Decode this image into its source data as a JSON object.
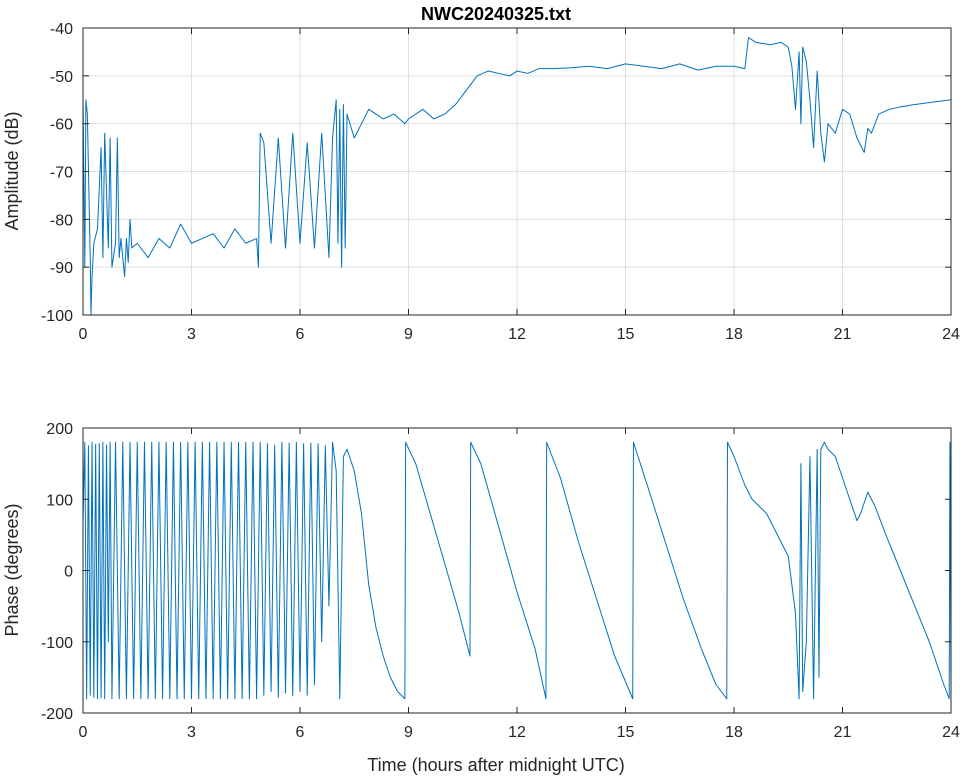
{
  "figure": {
    "title": "NWC20240325.txt"
  },
  "chart_data": [
    {
      "type": "line",
      "title": "NWC20240325.txt",
      "xlabel": "",
      "ylabel": "Amplitude (dB)",
      "xlim": [
        0,
        24
      ],
      "ylim": [
        -100,
        -40
      ],
      "xticks": [
        "0",
        "3",
        "6",
        "9",
        "12",
        "15",
        "18",
        "21",
        "24"
      ],
      "yticks": [
        "-40",
        "-50",
        "-60",
        "-70",
        "-80",
        "-90",
        "-100"
      ],
      "grid": true,
      "color": "#0072BD",
      "series": [
        {
          "x": [
            0.0,
            0.05,
            0.08,
            0.12,
            0.2,
            0.22,
            0.25,
            0.3,
            0.4,
            0.5,
            0.55,
            0.6,
            0.7,
            0.75,
            0.8,
            0.9,
            0.95,
            1.0,
            1.05,
            1.15,
            1.2,
            1.25,
            1.3,
            1.35,
            1.5,
            1.8,
            2.1,
            2.4,
            2.7,
            3.0,
            3.3,
            3.6,
            3.9,
            4.2,
            4.5,
            4.8,
            4.85,
            4.9,
            5.0,
            5.2,
            5.4,
            5.6,
            5.8,
            6.0,
            6.2,
            6.4,
            6.6,
            6.8,
            6.9,
            7.0,
            7.05,
            7.1,
            7.15,
            7.2,
            7.25,
            7.3,
            7.5,
            7.7,
            7.9,
            8.1,
            8.3,
            8.6,
            8.9,
            9.0,
            9.2,
            9.4,
            9.7,
            10.0,
            10.3,
            10.6,
            10.9,
            11.2,
            11.5,
            11.8,
            12.0,
            12.3,
            12.6,
            13.0,
            13.5,
            14.0,
            14.5,
            15.0,
            15.5,
            16.0,
            16.5,
            17.0,
            17.5,
            18.0,
            18.3,
            18.4,
            18.6,
            19.0,
            19.3,
            19.5,
            19.6,
            19.7,
            19.8,
            19.85,
            19.9,
            20.0,
            20.1,
            20.2,
            20.3,
            20.4,
            20.5,
            20.6,
            20.8,
            21.0,
            21.2,
            21.4,
            21.6,
            21.7,
            21.8,
            22.0,
            22.3,
            22.6,
            23.0,
            23.5,
            24.0
          ],
          "y": [
            -55,
            -90,
            -55,
            -58,
            -88,
            -100,
            -92,
            -85,
            -82,
            -65,
            -88,
            -62,
            -86,
            -63,
            -90,
            -85,
            -63,
            -88,
            -84,
            -92,
            -84,
            -89,
            -80,
            -86,
            -85,
            -88,
            -84,
            -86,
            -81,
            -85,
            -84,
            -83,
            -86,
            -82,
            -85,
            -84,
            -90,
            -62,
            -64,
            -85,
            -63,
            -86,
            -62,
            -85,
            -64,
            -86,
            -62,
            -88,
            -63,
            -55,
            -85,
            -57,
            -90,
            -56,
            -86,
            -58,
            -63,
            -60,
            -57,
            -58,
            -59,
            -58,
            -60,
            -59,
            -58,
            -57,
            -59,
            -58,
            -56,
            -53,
            -50,
            -49,
            -49.5,
            -50,
            -49,
            -49.5,
            -48.5,
            -48.5,
            -48.3,
            -48,
            -48.5,
            -47.5,
            -48,
            -48.5,
            -47.5,
            -48.8,
            -48,
            -48,
            -48.5,
            -42,
            -43,
            -43.5,
            -43,
            -44,
            -48,
            -57,
            -45,
            -60,
            -44,
            -47,
            -55,
            -65,
            -49,
            -62,
            -68,
            -60,
            -62,
            -57,
            -58,
            -63,
            -66,
            -61,
            -62,
            -58,
            -57,
            -56.5,
            -56,
            -55.5,
            -55
          ]
        }
      ]
    },
    {
      "type": "line",
      "title": "",
      "xlabel": "Time (hours after midnight UTC)",
      "ylabel": "Phase (degrees)",
      "xlim": [
        0,
        24
      ],
      "ylim": [
        -200,
        200
      ],
      "xticks": [
        "0",
        "3",
        "6",
        "9",
        "12",
        "15",
        "18",
        "21",
        "24"
      ],
      "yticks": [
        "200",
        "100",
        "0",
        "-100",
        "-200"
      ],
      "grid": false,
      "color": "#0072BD",
      "series": [
        {
          "x": [
            0.0,
            0.05,
            0.1,
            0.15,
            0.2,
            0.25,
            0.3,
            0.35,
            0.4,
            0.45,
            0.5,
            0.55,
            0.6,
            0.65,
            0.7,
            0.75,
            0.8,
            0.9,
            1.0,
            1.1,
            1.2,
            1.3,
            1.4,
            1.5,
            1.6,
            1.7,
            1.8,
            1.9,
            2.0,
            2.1,
            2.2,
            2.3,
            2.4,
            2.5,
            2.6,
            2.7,
            2.8,
            2.9,
            3.0,
            3.1,
            3.2,
            3.3,
            3.4,
            3.5,
            3.6,
            3.7,
            3.8,
            3.9,
            4.0,
            4.1,
            4.2,
            4.3,
            4.4,
            4.5,
            4.6,
            4.7,
            4.8,
            4.9,
            5.0,
            5.1,
            5.2,
            5.3,
            5.4,
            5.5,
            5.6,
            5.7,
            5.8,
            5.9,
            6.0,
            6.1,
            6.2,
            6.3,
            6.4,
            6.5,
            6.6,
            6.7,
            6.8,
            6.9,
            7.0,
            7.1,
            7.2,
            7.3,
            7.5,
            7.7,
            7.9,
            8.1,
            8.3,
            8.5,
            8.7,
            8.9,
            8.92,
            9.2,
            9.6,
            10.0,
            10.4,
            10.7,
            10.72,
            11.0,
            11.5,
            12.0,
            12.5,
            12.8,
            12.82,
            13.2,
            13.7,
            14.2,
            14.7,
            15.2,
            15.22,
            15.6,
            16.1,
            16.6,
            17.1,
            17.5,
            17.8,
            17.82,
            18.0,
            18.3,
            18.5,
            18.7,
            18.9,
            19.1,
            19.3,
            19.5,
            19.6,
            19.7,
            19.8,
            19.85,
            19.9,
            20.0,
            20.1,
            20.2,
            20.3,
            20.35,
            20.4,
            20.5,
            20.6,
            20.8,
            21.0,
            21.2,
            21.4,
            21.5,
            21.7,
            21.9,
            22.2,
            22.6,
            23.0,
            23.4,
            23.8,
            23.95,
            23.97,
            24.0
          ],
          "y": [
            70,
            180,
            -180,
            175,
            -175,
            180,
            -178,
            177,
            -180,
            178,
            -179,
            180,
            -180,
            176,
            -100,
            180,
            -180,
            180,
            -180,
            180,
            -180,
            180,
            -180,
            180,
            -180,
            180,
            -180,
            180,
            -180,
            180,
            -180,
            180,
            -180,
            180,
            -180,
            180,
            -180,
            180,
            -180,
            180,
            -180,
            180,
            -180,
            180,
            -180,
            180,
            -180,
            180,
            -180,
            180,
            -180,
            180,
            -180,
            180,
            -180,
            180,
            -180,
            180,
            -175,
            178,
            -170,
            176,
            -178,
            180,
            -172,
            179,
            -176,
            180,
            -170,
            178,
            -175,
            179,
            -160,
            178,
            -100,
            175,
            -50,
            180,
            140,
            -180,
            160,
            170,
            140,
            80,
            -20,
            -80,
            -120,
            -150,
            -170,
            -180,
            180,
            150,
            80,
            10,
            -60,
            -120,
            180,
            150,
            60,
            -30,
            -110,
            -180,
            180,
            130,
            40,
            -40,
            -120,
            -180,
            180,
            120,
            40,
            -40,
            -110,
            -160,
            -180,
            180,
            160,
            120,
            100,
            90,
            80,
            60,
            40,
            20,
            -20,
            -60,
            -180,
            150,
            -170,
            -100,
            160,
            -180,
            170,
            -150,
            170,
            180,
            170,
            160,
            130,
            100,
            70,
            80,
            110,
            90,
            50,
            0,
            -50,
            -100,
            -160,
            -180,
            180,
            -170
          ]
        }
      ]
    }
  ]
}
